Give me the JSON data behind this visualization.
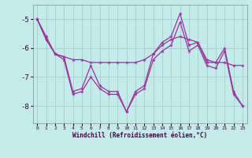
{
  "xlabel": "Windchill (Refroidissement éolien,°C)",
  "background_color": "#c5eaea",
  "grid_color": "#a0d0d0",
  "line_color": "#993399",
  "x": [
    0,
    1,
    2,
    3,
    4,
    5,
    6,
    7,
    8,
    9,
    10,
    11,
    12,
    13,
    14,
    15,
    16,
    17,
    18,
    19,
    20,
    21,
    22,
    23
  ],
  "lineA": [
    -5.0,
    -5.6,
    -6.2,
    -6.3,
    -7.5,
    -7.4,
    -6.6,
    -7.3,
    -7.5,
    -7.5,
    -8.2,
    -7.5,
    -7.3,
    -6.2,
    -5.8,
    -5.6,
    -4.8,
    -5.9,
    -5.8,
    -6.5,
    -6.5,
    -6.0,
    -7.5,
    -8.0
  ],
  "lineB": [
    -5.0,
    -5.7,
    -6.2,
    -6.3,
    -6.4,
    -6.4,
    -6.5,
    -6.5,
    -6.5,
    -6.5,
    -6.5,
    -6.5,
    -6.4,
    -6.2,
    -5.9,
    -5.7,
    -5.6,
    -5.7,
    -5.8,
    -6.4,
    -6.5,
    -6.5,
    -6.6,
    -6.6
  ],
  "lineC": [
    -5.0,
    -5.7,
    -6.2,
    -6.4,
    -7.6,
    -7.5,
    -7.0,
    -7.4,
    -7.6,
    -7.6,
    -8.2,
    -7.6,
    -7.4,
    -6.4,
    -6.1,
    -5.9,
    -5.1,
    -6.1,
    -5.9,
    -6.6,
    -6.7,
    -6.1,
    -7.6,
    -8.0
  ],
  "ylim": [
    -8.6,
    -4.5
  ],
  "yticks": [
    -8,
    -7,
    -6,
    -5
  ],
  "xlim": [
    -0.5,
    23.5
  ]
}
